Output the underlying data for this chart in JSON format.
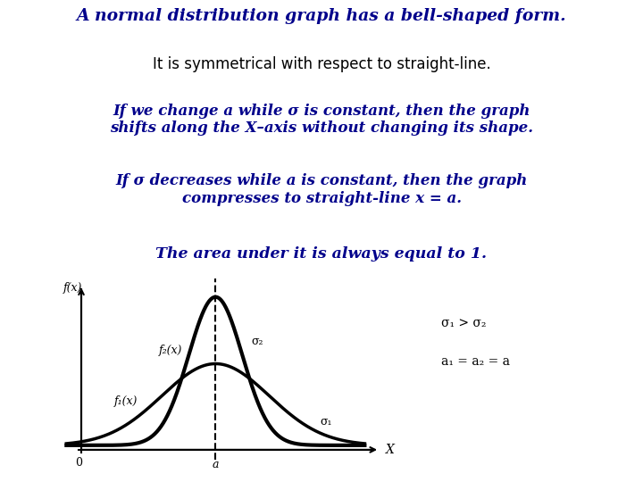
{
  "bg_color": "#ffffff",
  "title_bold_italic": "A normal distribution graph has a bell-shaped form.",
  "title_color": "#00008B",
  "subtitle": "It is symmetrical with respect to straight-line.",
  "subtitle_color": "#000000",
  "p1_text": "If we change a while σ is constant, then the graph\nshifts along the X–axis without changing its shape.",
  "p2_text": "If σ decreases while a is constant, then the graph\ncompresses to straight-line x = a.",
  "p3_text": "The area under it is always equal to 1.",
  "text_color": "#00008B",
  "curve1_sigma": 1.8,
  "curve2_sigma": 0.9,
  "curve_mean": 0.0,
  "curve_color": "#000000",
  "curve1_lw": 2.5,
  "curve2_lw": 3.0,
  "dashed_color": "#000000",
  "axis_color": "#000000"
}
